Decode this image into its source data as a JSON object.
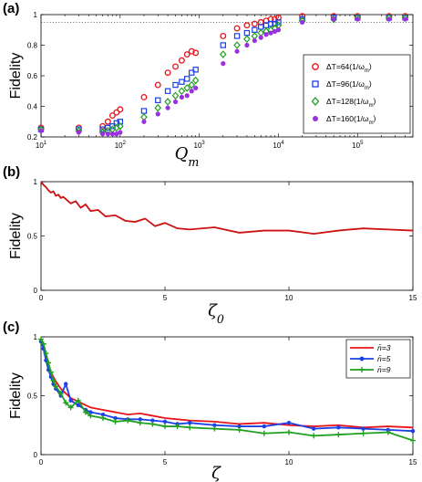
{
  "colors": {
    "series1": "#e8141c",
    "series2": "#1b3fe8",
    "series3": "#1fa01f",
    "series4": "#9b30e0",
    "line_red": "#cc1111",
    "threshold": "#555555"
  },
  "chart_data": [
    {
      "id": "a",
      "panel_label": "(a)",
      "type": "scatter",
      "ylabel": "Fidelity",
      "xlabel": "Q",
      "xlabel_sub": "m",
      "xscale": "log",
      "xlim": [
        10,
        500000
      ],
      "ylim": [
        0.2,
        1.0
      ],
      "yticks": [
        "0.2",
        "0.4",
        "0.6",
        "0.8",
        "1"
      ],
      "xtick_decades": [
        1,
        2,
        3,
        4,
        5
      ],
      "threshold_y": 0.95,
      "legend_position": "center-right",
      "series": [
        {
          "name": "ΔT=64(1/ω",
          "name_sub": "m",
          "name_end": ")",
          "marker": "circle",
          "x": [
            10,
            30,
            60,
            70,
            80,
            90,
            100,
            200,
            300,
            400,
            500,
            600,
            700,
            800,
            900,
            2000,
            3000,
            4000,
            5000,
            6000,
            7000,
            8000,
            9000,
            10000,
            20000,
            50000,
            100000,
            250000,
            400000
          ],
          "y": [
            0.26,
            0.26,
            0.27,
            0.3,
            0.34,
            0.36,
            0.38,
            0.46,
            0.54,
            0.62,
            0.66,
            0.7,
            0.74,
            0.76,
            0.75,
            0.86,
            0.91,
            0.93,
            0.94,
            0.95,
            0.96,
            0.97,
            0.97,
            0.98,
            0.99,
            0.99,
            0.99,
            0.99,
            0.99
          ]
        },
        {
          "name": "ΔT=96(1/ω",
          "name_sub": "m",
          "name_end": ")",
          "marker": "square",
          "x": [
            10,
            30,
            60,
            70,
            80,
            90,
            100,
            200,
            300,
            400,
            500,
            600,
            700,
            800,
            900,
            2000,
            3000,
            4000,
            5000,
            6000,
            7000,
            8000,
            9000,
            10000,
            20000,
            50000,
            100000,
            250000,
            400000
          ],
          "y": [
            0.25,
            0.25,
            0.25,
            0.26,
            0.27,
            0.29,
            0.3,
            0.37,
            0.44,
            0.5,
            0.54,
            0.56,
            0.58,
            0.62,
            0.64,
            0.8,
            0.86,
            0.88,
            0.9,
            0.92,
            0.93,
            0.94,
            0.94,
            0.95,
            0.97,
            0.98,
            0.98,
            0.98,
            0.98
          ]
        },
        {
          "name": "ΔT=128(1/ω",
          "name_sub": "m",
          "name_end": ")",
          "marker": "diamond",
          "x": [
            10,
            30,
            60,
            70,
            80,
            90,
            100,
            200,
            300,
            400,
            500,
            600,
            700,
            800,
            900,
            2000,
            3000,
            4000,
            5000,
            6000,
            7000,
            8000,
            9000,
            10000,
            20000,
            50000,
            100000,
            250000,
            400000
          ],
          "y": [
            0.25,
            0.24,
            0.23,
            0.24,
            0.25,
            0.26,
            0.27,
            0.33,
            0.39,
            0.43,
            0.47,
            0.5,
            0.52,
            0.54,
            0.57,
            0.74,
            0.8,
            0.84,
            0.86,
            0.88,
            0.89,
            0.9,
            0.91,
            0.93,
            0.96,
            0.97,
            0.98,
            0.98,
            0.98
          ]
        },
        {
          "name": "ΔT=160(1/ω",
          "name_sub": "m",
          "name_end": ")",
          "marker": "dot",
          "x": [
            10,
            30,
            60,
            70,
            80,
            90,
            100,
            200,
            300,
            400,
            500,
            600,
            700,
            800,
            900,
            2000,
            3000,
            4000,
            5000,
            6000,
            7000,
            8000,
            9000,
            10000,
            20000,
            50000,
            100000,
            250000,
            400000
          ],
          "y": [
            0.24,
            0.23,
            0.22,
            0.22,
            0.22,
            0.22,
            0.23,
            0.3,
            0.35,
            0.39,
            0.43,
            0.46,
            0.47,
            0.5,
            0.52,
            0.68,
            0.76,
            0.8,
            0.83,
            0.85,
            0.87,
            0.88,
            0.89,
            0.9,
            0.95,
            0.97,
            0.97,
            0.97,
            0.97
          ]
        }
      ]
    },
    {
      "id": "b",
      "panel_label": "(b)",
      "type": "line",
      "ylabel": "Fidelity",
      "xlabel": "ζ",
      "xlabel_sub": "0",
      "xlim": [
        0,
        15
      ],
      "ylim": [
        0,
        1
      ],
      "xticks": [
        "0",
        "5",
        "10",
        "15"
      ],
      "yticks": [
        "0",
        "0.5",
        "1"
      ],
      "series": [
        {
          "x": [
            0,
            0.1,
            0.2,
            0.3,
            0.4,
            0.5,
            0.6,
            0.7,
            0.8,
            0.9,
            1.0,
            1.2,
            1.4,
            1.6,
            1.8,
            2.0,
            2.3,
            2.6,
            3.0,
            3.4,
            3.8,
            4.2,
            4.6,
            5.0,
            5.5,
            6.0,
            7.0,
            8.0,
            9.0,
            10.0,
            11.0,
            12.0,
            13.0,
            14.0,
            15.0
          ],
          "y": [
            1.0,
            0.97,
            0.95,
            0.92,
            0.9,
            0.91,
            0.87,
            0.88,
            0.85,
            0.86,
            0.84,
            0.8,
            0.82,
            0.76,
            0.79,
            0.73,
            0.74,
            0.68,
            0.69,
            0.64,
            0.63,
            0.66,
            0.59,
            0.62,
            0.57,
            0.56,
            0.58,
            0.53,
            0.55,
            0.55,
            0.52,
            0.55,
            0.57,
            0.56,
            0.55
          ]
        }
      ]
    },
    {
      "id": "c",
      "panel_label": "(c)",
      "type": "line",
      "ylabel": "Fidelity",
      "xlabel": "ζ",
      "xlim": [
        0,
        15
      ],
      "ylim": [
        0,
        1
      ],
      "xticks": [
        "0",
        "5",
        "10",
        "15"
      ],
      "yticks": [
        "0",
        "0.5",
        "1"
      ],
      "legend_position": "top-right",
      "series": [
        {
          "name": "n̄=3",
          "marker": "none",
          "x": [
            0,
            0.1,
            0.2,
            0.3,
            0.4,
            0.5,
            0.6,
            0.8,
            1.0,
            1.2,
            1.5,
            1.8,
            2.0,
            2.5,
            3.0,
            3.5,
            4.0,
            4.5,
            5.0,
            5.5,
            6.0,
            7.0,
            8.0,
            9.0,
            10.0,
            11.0,
            12.0,
            13.0,
            14.0,
            15.0
          ],
          "y": [
            0.97,
            0.92,
            0.84,
            0.76,
            0.7,
            0.66,
            0.62,
            0.56,
            0.52,
            0.48,
            0.45,
            0.42,
            0.4,
            0.38,
            0.36,
            0.34,
            0.35,
            0.33,
            0.31,
            0.3,
            0.29,
            0.28,
            0.26,
            0.27,
            0.25,
            0.24,
            0.25,
            0.23,
            0.24,
            0.23
          ]
        },
        {
          "name": "n̄=5",
          "marker": "dot",
          "x": [
            0,
            0.1,
            0.2,
            0.3,
            0.4,
            0.5,
            0.6,
            0.8,
            1.0,
            1.2,
            1.5,
            1.8,
            2.0,
            2.5,
            3.0,
            3.5,
            4.0,
            4.5,
            5.0,
            5.5,
            6.0,
            7.0,
            8.0,
            9.0,
            10.0,
            11.0,
            12.0,
            13.0,
            14.0,
            15.0
          ],
          "y": [
            0.96,
            0.9,
            0.8,
            0.72,
            0.66,
            0.6,
            0.56,
            0.5,
            0.6,
            0.46,
            0.42,
            0.38,
            0.36,
            0.34,
            0.31,
            0.3,
            0.3,
            0.29,
            0.28,
            0.26,
            0.27,
            0.25,
            0.24,
            0.24,
            0.27,
            0.22,
            0.23,
            0.22,
            0.21,
            0.2
          ]
        },
        {
          "name": "n̄=9",
          "marker": "plus",
          "x": [
            0,
            0.1,
            0.2,
            0.3,
            0.4,
            0.5,
            0.6,
            0.8,
            1.0,
            1.2,
            1.5,
            1.8,
            2.0,
            2.5,
            3.0,
            3.5,
            4.0,
            4.5,
            5.0,
            5.5,
            6.0,
            7.0,
            8.0,
            9.0,
            10.0,
            11.0,
            12.0,
            13.0,
            14.0,
            15.0
          ],
          "y": [
            0.98,
            0.94,
            0.86,
            0.78,
            0.7,
            0.63,
            0.58,
            0.52,
            0.44,
            0.4,
            0.46,
            0.36,
            0.33,
            0.31,
            0.28,
            0.29,
            0.27,
            0.26,
            0.24,
            0.24,
            0.23,
            0.22,
            0.21,
            0.18,
            0.19,
            0.16,
            0.17,
            0.18,
            0.19,
            0.12
          ]
        }
      ]
    }
  ]
}
